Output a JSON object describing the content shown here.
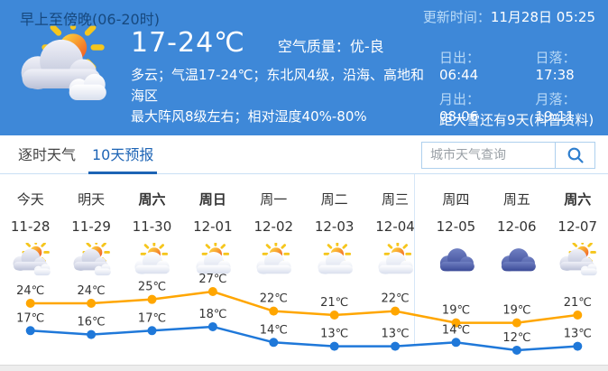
{
  "header": {
    "period": "早上至傍晚(06-20时)",
    "update_label": "更新时间：",
    "update_time": "11月28日 05:25",
    "temp_range": "17-24℃",
    "air_quality_label": "空气质量：",
    "air_quality_value": "优-良",
    "description_line1": "多云；气温17-24℃；东北风4级，沿海、高地和海区",
    "description_line2": "最大阵风8级左右；相对湿度40%-80%",
    "sunrise_label": "日出：",
    "sunrise_time": "06:44",
    "sunset_label": "日落：",
    "sunset_time": "17:38",
    "moonrise_label": "月出：",
    "moonrise_time": "08:06",
    "moonset_label": "月落：",
    "moonset_time": "19:11",
    "countdown": "距大雪还有9天(科普资料)",
    "weather_icon": "sun-behind-clouds-icon"
  },
  "tabs": [
    {
      "label": "逐时天气",
      "active": false
    },
    {
      "label": "10天预报",
      "active": true
    }
  ],
  "search": {
    "placeholder": "城市天气查询",
    "button_icon": "search-icon"
  },
  "forecast": {
    "days": [
      {
        "day": "今天",
        "date": "11-28",
        "icon": "cloudy",
        "bold": false
      },
      {
        "day": "明天",
        "date": "11-29",
        "icon": "cloudy",
        "bold": false
      },
      {
        "day": "周六",
        "date": "11-30",
        "icon": "sun-cloud",
        "bold": true
      },
      {
        "day": "周日",
        "date": "12-01",
        "icon": "sun-cloud",
        "bold": true
      },
      {
        "day": "周一",
        "date": "12-02",
        "icon": "sun-cloud",
        "bold": false
      },
      {
        "day": "周二",
        "date": "12-03",
        "icon": "sun-cloud",
        "bold": false
      },
      {
        "day": "周三",
        "date": "12-04",
        "icon": "sun-cloud",
        "bold": false
      },
      {
        "day": "周四",
        "date": "12-05",
        "icon": "overcast",
        "bold": false
      },
      {
        "day": "周五",
        "date": "12-06",
        "icon": "overcast",
        "bold": false
      },
      {
        "day": "周六",
        "date": "12-07",
        "icon": "cloudy",
        "bold": true
      }
    ]
  },
  "chart_data": {
    "type": "line",
    "categories": [
      "11-28",
      "11-29",
      "11-30",
      "12-01",
      "12-02",
      "12-03",
      "12-04",
      "12-05",
      "12-06",
      "12-07"
    ],
    "series": [
      {
        "name": "high",
        "color": "#ffa600",
        "values": [
          24,
          24,
          25,
          27,
          22,
          21,
          22,
          19,
          19,
          21
        ]
      },
      {
        "name": "low",
        "color": "#1f78d9",
        "values": [
          17,
          16,
          17,
          18,
          14,
          13,
          13,
          14,
          12,
          13
        ]
      }
    ],
    "unit": "℃",
    "ylim": [
      10,
      29
    ],
    "grid": false,
    "legend": "none"
  },
  "colors": {
    "header_bg": "#3e88d8",
    "header_dark_text": "#17497f",
    "header_light_label": "#b9d9f6",
    "tab_active": "#1d64b5",
    "tab_border": "#c9e0f4",
    "search_border": "#aed0ee",
    "high_line": "#ffa600",
    "low_line": "#1f78d9",
    "overcast_cloud": "#45539d",
    "text": "#333333"
  }
}
